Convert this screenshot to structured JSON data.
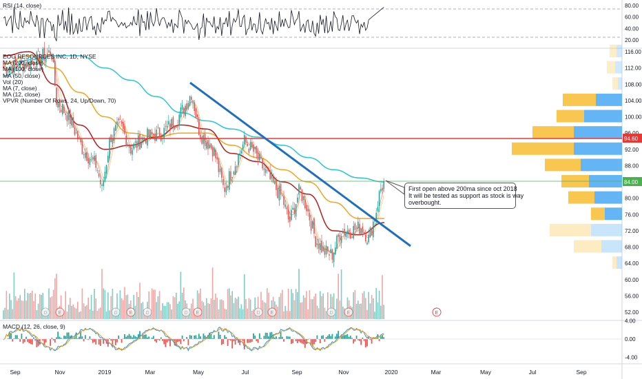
{
  "colors": {
    "ma200": "#26c6da",
    "ma100": "#f6a21c",
    "ma50": "#b71c1c",
    "ma7": "#ef9a9a",
    "ma12": "#ffcc80",
    "trendline": "#1e6fc0",
    "resistance": "#e53935",
    "support": "#4caf50",
    "candle_up": "#26a69a",
    "candle_down": "#ef5350",
    "macd_line": "#2196f3",
    "signal_line": "#ff9800",
    "vpvr_up": "#64b5f6",
    "vpvr_down": "#f9c74f"
  },
  "rsi_panel": {
    "label": "RSI (14, close)",
    "ticks": [
      "80.00",
      "60.00",
      "40.00",
      "20.00"
    ]
  },
  "price_panel": {
    "legend": [
      "EOG RESOURCES INC, 1D, NYSE",
      "MA (200, close)",
      "MA (100, close)",
      "MA (50, close)",
      "Vol (20)",
      "MA (7, close)",
      "MA (12, close)",
      "VPVR (Number Of Rows, 24, Up/Down, 70)"
    ],
    "ticks": [
      "116.00",
      "112.00",
      "108.00",
      "104.00",
      "100.00",
      "96.00",
      "92.00",
      "88.00",
      "84.00",
      "80.00",
      "76.00",
      "72.00",
      "68.00",
      "64.00",
      "60.00",
      "56.00",
      "52.00"
    ],
    "resistance_label": "94.60",
    "support_label": "84.00",
    "annotation": [
      "First open above 200ma since oct 2018",
      "It will be tested as support as stock is way",
      "overbought."
    ],
    "earnings_marker": "E",
    "dividend_marker": "D"
  },
  "macd_panel": {
    "label": "MACD (12, 26, close, 9)",
    "ticks": [
      "4.00",
      "0.00",
      "-4.00"
    ]
  },
  "x_axis": {
    "labels": [
      "Sep",
      "Nov",
      "2019",
      "Mar",
      "May",
      "Jul",
      "Sep",
      "Nov",
      "2020",
      "Mar",
      "May",
      "Jul",
      "Sep"
    ]
  },
  "chart_data": {
    "type": "candlestick",
    "title": "EOG RESOURCES INC, 1D, NYSE",
    "x": [
      "2018-09",
      "2018-10",
      "2018-11",
      "2018-12",
      "2019-01",
      "2019-02",
      "2019-03",
      "2019-04",
      "2019-05",
      "2019-06",
      "2019-07",
      "2019-08",
      "2019-09",
      "2019-10",
      "2019-11",
      "2019-12"
    ],
    "series": [
      {
        "name": "Price",
        "values": [
          112,
          116,
          104,
          92,
          86,
          95,
          95,
          104,
          95,
          88,
          90,
          84,
          82,
          70,
          69,
          84
        ]
      },
      {
        "name": "MA (200, close)",
        "values": [
          110,
          114,
          115,
          115,
          112,
          109,
          105,
          101,
          99,
          97,
          95,
          93,
          90,
          87,
          85,
          84
        ]
      },
      {
        "name": "MA (100, close)",
        "values": [
          113,
          115,
          112,
          106,
          100,
          96,
          95,
          96,
          96,
          93,
          90,
          87,
          84,
          79,
          75,
          75
        ]
      },
      {
        "name": "MA (50, close)",
        "values": [
          115,
          116,
          108,
          98,
          92,
          93,
          95,
          98,
          97,
          91,
          89,
          84,
          81,
          72,
          71,
          74
        ]
      }
    ],
    "ylim": [
      50,
      117
    ],
    "lines": {
      "resistance": 94.6,
      "support": 84.0
    },
    "trendline": {
      "from": [
        "2019-04-27",
        108.3
      ],
      "to": [
        "2019-12-24",
        68.3
      ]
    },
    "rsi": {
      "ylim": [
        15,
        85
      ],
      "last": 78
    },
    "macd": {
      "ylim": [
        -5,
        5
      ],
      "last_macd": 3.2,
      "last_signal": 2.4
    }
  }
}
